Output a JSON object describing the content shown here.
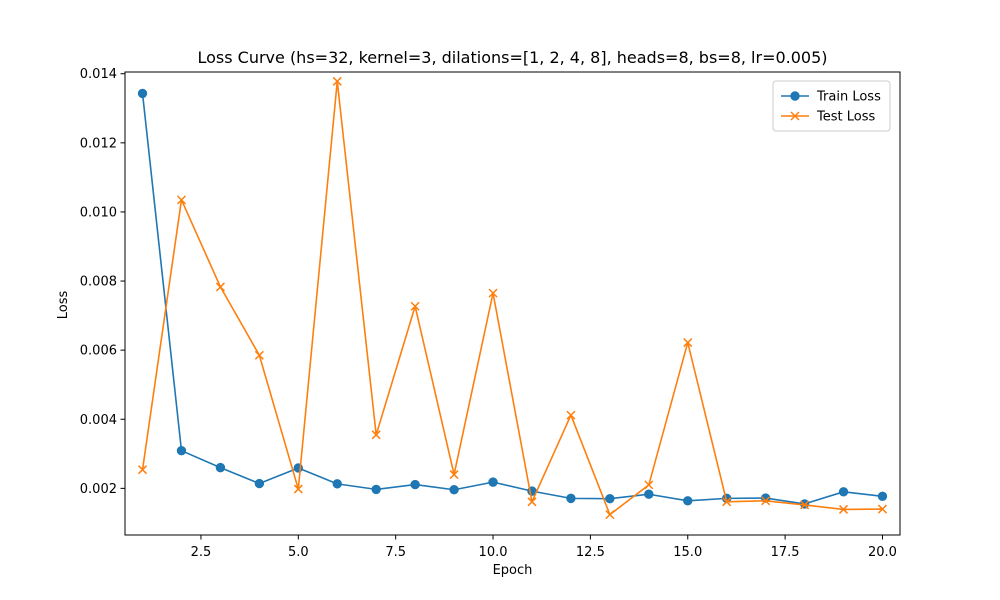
{
  "chart_data": {
    "type": "line",
    "title": "Loss Curve (hs=32, kernel=3, dilations=[1, 2, 4, 8], heads=8, bs=8, lr=0.005)",
    "xlabel": "Epoch",
    "ylabel": "Loss",
    "xlim": [
      0.55,
      20.45
    ],
    "ylim": [
      0.00065,
      0.01405
    ],
    "xticks": [
      2.5,
      5.0,
      7.5,
      10.0,
      12.5,
      15.0,
      17.5,
      20.0
    ],
    "xtick_labels": [
      "2.5",
      "5.0",
      "7.5",
      "10.0",
      "12.5",
      "15.0",
      "17.5",
      "20.0"
    ],
    "yticks": [
      0.002,
      0.004,
      0.006,
      0.008,
      0.01,
      0.012,
      0.014
    ],
    "ytick_labels": [
      "0.002",
      "0.004",
      "0.006",
      "0.008",
      "0.010",
      "0.012",
      "0.014"
    ],
    "grid": false,
    "legend_position": "top-right",
    "x": [
      1,
      2,
      3,
      4,
      5,
      6,
      7,
      8,
      9,
      10,
      11,
      12,
      13,
      14,
      15,
      16,
      17,
      18,
      19,
      20
    ],
    "series": [
      {
        "name": "Train Loss",
        "color": "#1f77b4",
        "marker": "circle",
        "values": [
          0.01343,
          0.00309,
          0.0026,
          0.00214,
          0.00259,
          0.00213,
          0.00197,
          0.00211,
          0.00196,
          0.00218,
          0.00192,
          0.00171,
          0.0017,
          0.00183,
          0.00164,
          0.00171,
          0.00172,
          0.00155,
          0.0019,
          0.00177
        ]
      },
      {
        "name": "Test Loss",
        "color": "#ff7f0e",
        "marker": "x",
        "values": [
          0.00254,
          0.01035,
          0.00783,
          0.00585,
          0.00198,
          0.01378,
          0.00355,
          0.00727,
          0.0024,
          0.00765,
          0.00161,
          0.00412,
          0.00124,
          0.0021,
          0.00622,
          0.00161,
          0.00164,
          0.00152,
          0.00139,
          0.0014
        ]
      }
    ]
  }
}
